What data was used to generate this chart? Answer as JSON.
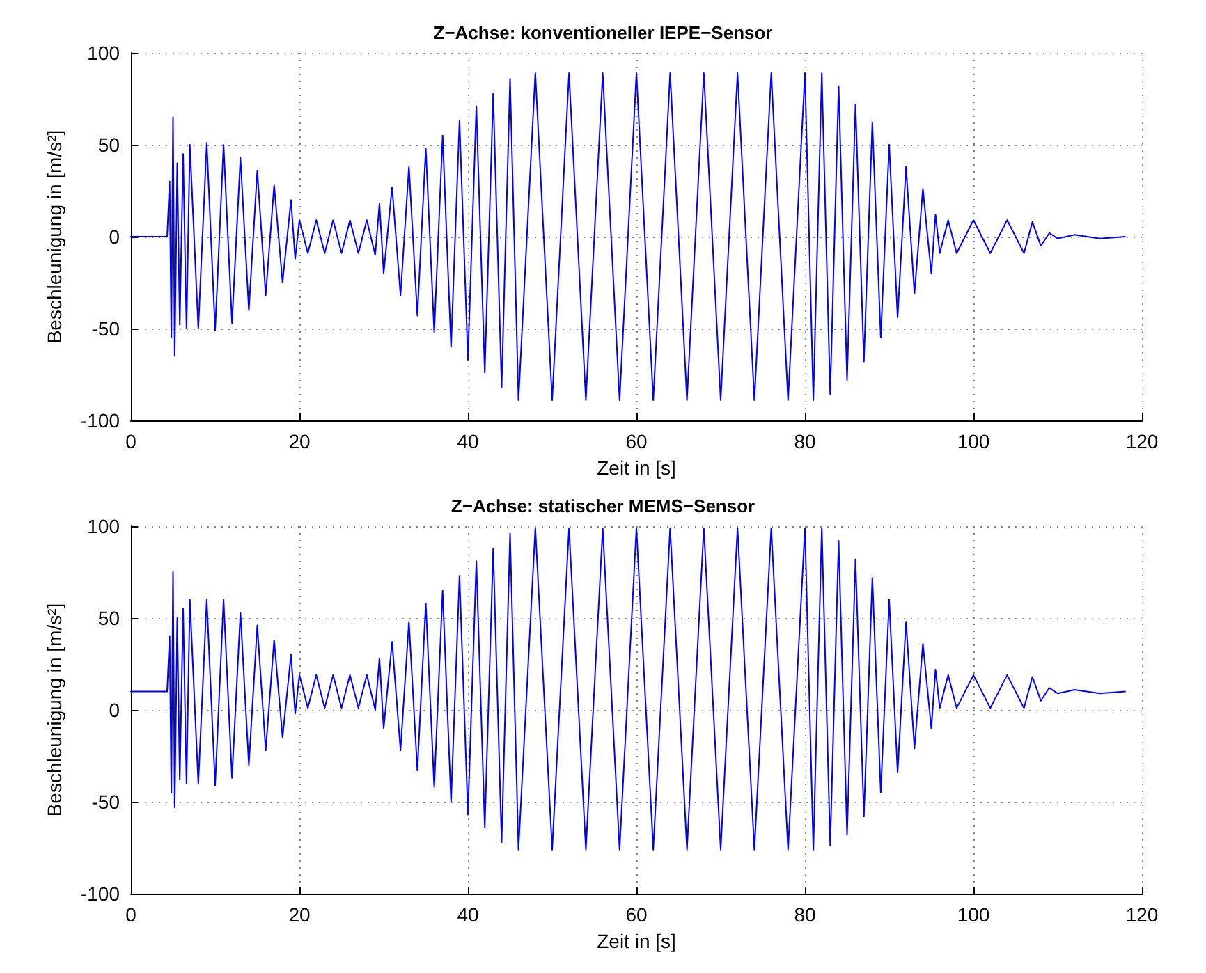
{
  "chart_data": [
    {
      "type": "line",
      "title": "Z−Achse: konventioneller IEPE−Sensor",
      "xlabel": "Zeit in [s]",
      "ylabel": "Beschleunigung in [m/s²]",
      "xlim": [
        0,
        120
      ],
      "xticks": [
        0,
        20,
        40,
        60,
        80,
        100,
        120
      ],
      "ylim": [
        -100,
        100
      ],
      "yticks": [
        -100,
        -50,
        0,
        50,
        100
      ],
      "grid": true,
      "marker": "none",
      "line_style": "solid",
      "x": [
        0,
        4.3,
        4.6,
        4.8,
        5.0,
        5.2,
        5.5,
        5.8,
        6.2,
        6.6,
        7,
        8,
        9,
        10,
        11,
        12,
        13,
        14,
        15,
        16,
        17,
        18,
        19,
        19.5,
        20,
        21,
        22,
        23,
        24,
        25,
        26,
        27,
        28,
        29,
        29.5,
        30,
        31,
        32,
        33,
        34,
        35,
        36,
        37,
        38,
        39,
        40,
        41,
        42,
        43,
        44,
        45,
        46,
        48,
        50,
        52,
        54,
        56,
        58,
        60,
        62,
        64,
        66,
        68,
        70,
        72,
        74,
        76,
        78,
        80,
        81,
        82,
        83,
        84,
        85,
        86,
        87,
        88,
        89,
        90,
        91,
        92,
        93,
        94,
        95,
        95.5,
        96,
        97,
        98,
        100,
        102,
        104,
        106,
        107,
        108,
        109,
        110,
        112,
        115,
        118
      ],
      "series": [
        {
          "color": "#0000ff",
          "values": [
            0,
            0,
            30,
            -55,
            65,
            -65,
            40,
            -48,
            45,
            -50,
            50,
            -50,
            51,
            -51,
            50,
            -47,
            43,
            -40,
            36,
            -32,
            28,
            -25,
            20,
            -12,
            9,
            -9,
            9,
            -9,
            9,
            -9,
            9,
            -9,
            9,
            -10,
            18,
            -20,
            27,
            -32,
            38,
            -43,
            48,
            -52,
            55,
            -60,
            63,
            -67,
            71,
            -74,
            78,
            -82,
            86,
            -89,
            89,
            -89,
            89,
            -89,
            89,
            -89,
            89,
            -89,
            89,
            -89,
            89,
            -89,
            89,
            -89,
            89,
            -89,
            89,
            -89,
            89,
            -86,
            82,
            -78,
            72,
            -68,
            62,
            -55,
            50,
            -44,
            38,
            -31,
            26,
            -20,
            12,
            -9,
            9,
            -9,
            9,
            -9,
            9,
            -9,
            8,
            -5,
            2,
            -1,
            1,
            -1,
            0
          ]
        }
      ]
    },
    {
      "type": "line",
      "title": "Z−Achse: statischer MEMS−Sensor",
      "xlabel": "Zeit in [s]",
      "ylabel": "Beschleunigung in [m/s²]",
      "xlim": [
        0,
        120
      ],
      "xticks": [
        0,
        20,
        40,
        60,
        80,
        100,
        120
      ],
      "ylim": [
        -100,
        100
      ],
      "yticks": [
        -100,
        -50,
        0,
        50,
        100
      ],
      "grid": true,
      "marker": "none",
      "line_style": "solid",
      "x": [
        0,
        4.3,
        4.6,
        4.8,
        5.0,
        5.2,
        5.5,
        5.8,
        6.2,
        6.6,
        7,
        8,
        9,
        10,
        11,
        12,
        13,
        14,
        15,
        16,
        17,
        18,
        19,
        19.5,
        20,
        21,
        22,
        23,
        24,
        25,
        26,
        27,
        28,
        29,
        29.5,
        30,
        31,
        32,
        33,
        34,
        35,
        36,
        37,
        38,
        39,
        40,
        41,
        42,
        43,
        44,
        45,
        46,
        48,
        50,
        52,
        54,
        56,
        58,
        60,
        62,
        64,
        66,
        68,
        70,
        72,
        74,
        76,
        78,
        80,
        81,
        82,
        83,
        84,
        85,
        86,
        87,
        88,
        89,
        90,
        91,
        92,
        93,
        94,
        95,
        95.5,
        96,
        97,
        98,
        100,
        102,
        104,
        106,
        107,
        108,
        109,
        110,
        112,
        115,
        118
      ],
      "series": [
        {
          "color": "#0000ff",
          "values": [
            10,
            10,
            40,
            -45,
            75,
            -53,
            50,
            -38,
            55,
            -40,
            60,
            -40,
            60,
            -41,
            60,
            -37,
            53,
            -30,
            46,
            -22,
            38,
            -15,
            30,
            -2,
            19,
            1,
            19,
            1,
            19,
            1,
            19,
            1,
            19,
            0,
            28,
            -10,
            37,
            -22,
            48,
            -33,
            58,
            -42,
            65,
            -50,
            73,
            -57,
            81,
            -64,
            88,
            -72,
            96,
            -76,
            99,
            -76,
            99,
            -76,
            99,
            -76,
            99,
            -76,
            99,
            -76,
            99,
            -76,
            99,
            -76,
            99,
            -76,
            99,
            -76,
            99,
            -74,
            92,
            -68,
            82,
            -58,
            72,
            -45,
            60,
            -34,
            48,
            -21,
            36,
            -10,
            22,
            1,
            19,
            1,
            19,
            1,
            19,
            1,
            18,
            5,
            12,
            9,
            11,
            9,
            10
          ]
        }
      ]
    }
  ]
}
